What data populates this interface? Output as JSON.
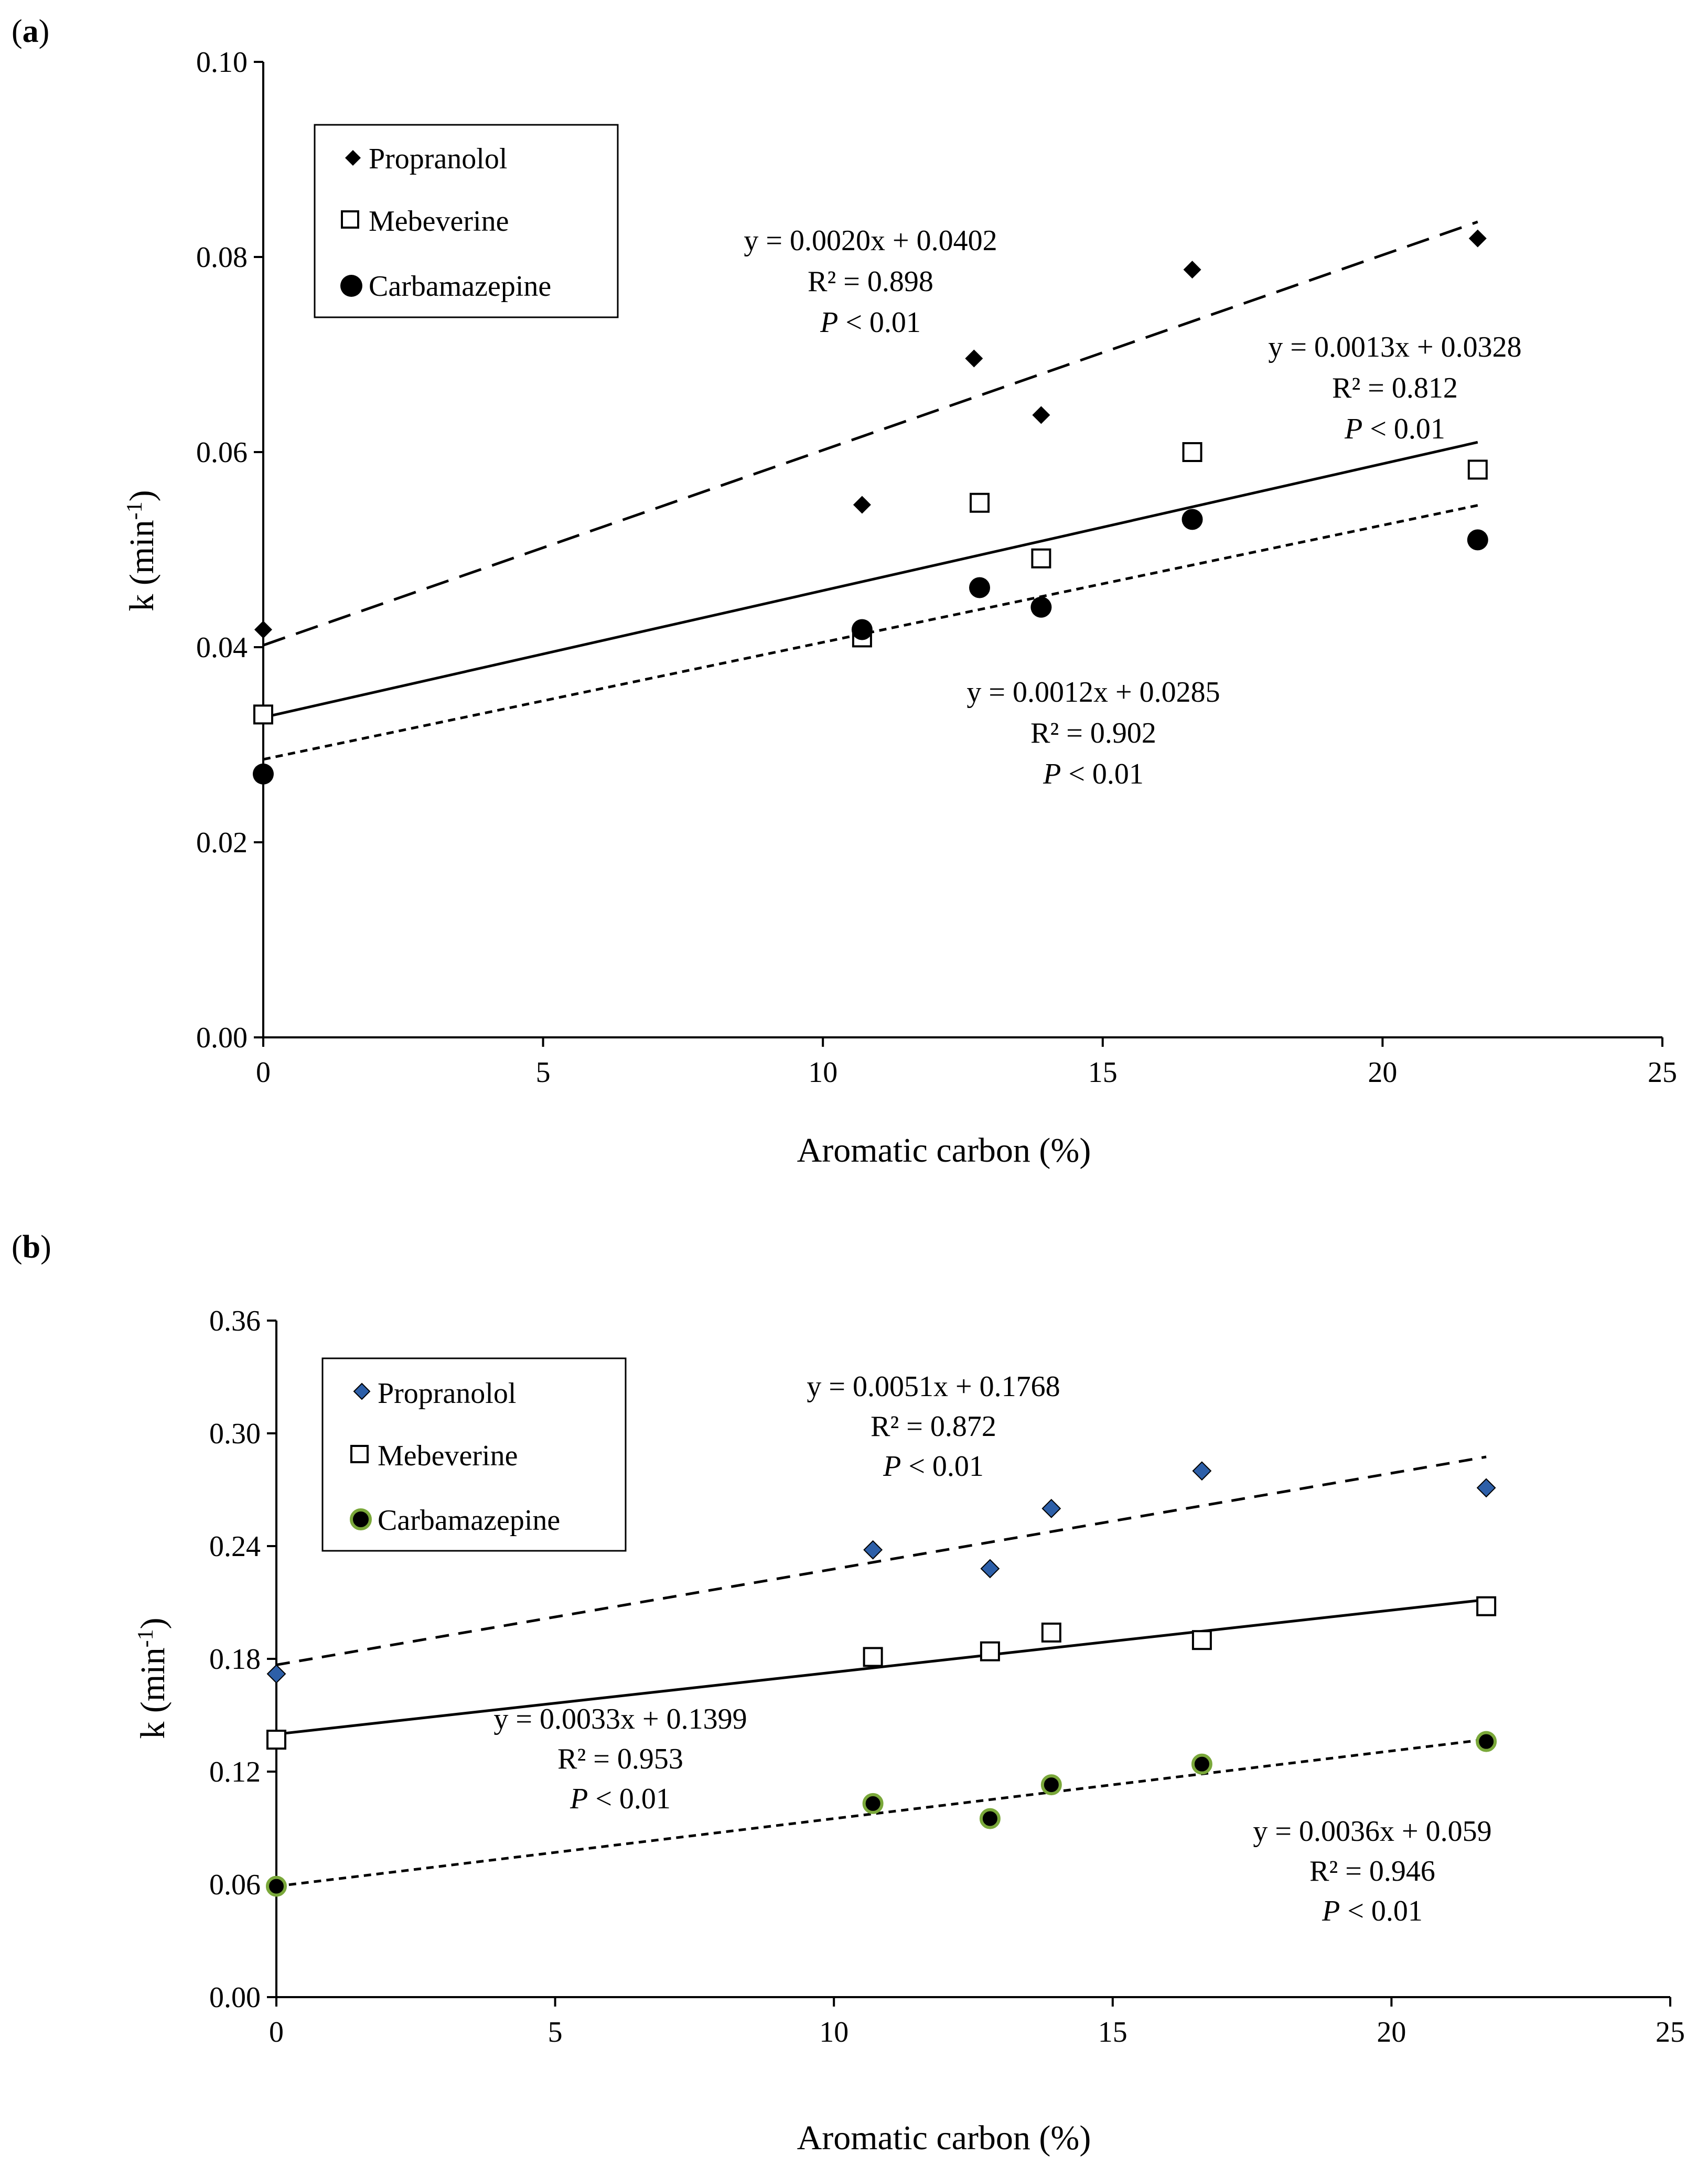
{
  "panels": [
    {
      "label_open": "(",
      "label_letter": "a",
      "label_close": ")",
      "legend": [
        "Propranolol",
        "Mebeverine",
        "Carbamazepine"
      ]
    },
    {
      "label_open": "(",
      "label_letter": "b",
      "label_close": ")",
      "legend": [
        "Propranolol",
        "Mebeverine",
        "Carbamazepine"
      ]
    }
  ],
  "chart_data": [
    {
      "type": "scatter",
      "panel": "a",
      "xlabel": "Aromatic carbon (%)",
      "ylabel_base": "k (min",
      "ylabel_sup": "-1",
      "ylabel_close": ")",
      "xlim": [
        0,
        25
      ],
      "ylim": [
        0.0,
        0.1
      ],
      "xticks": [
        "0",
        "5",
        "10",
        "15",
        "20",
        "25"
      ],
      "yticks": [
        "0.00",
        "0.02",
        "0.04",
        "0.06",
        "0.08",
        "0.10"
      ],
      "legend_position": "top-left",
      "series": [
        {
          "name": "Propranolol",
          "marker": "diamond",
          "x": [
            0,
            10.7,
            12.7,
            13.9,
            16.6,
            21.7
          ],
          "y": [
            0.0418,
            0.0546,
            0.0696,
            0.0638,
            0.0787,
            0.0819
          ],
          "trend": {
            "slope": 0.002,
            "intercept": 0.0402,
            "x_range": [
              0,
              21.7
            ],
            "style": "long-dash"
          },
          "equation": "y = 0.0020x + 0.0402",
          "r2": "R² = 0.898",
          "p_italic": "P",
          "p_rest": " < 0.01"
        },
        {
          "name": "Mebeverine",
          "marker": "open-square",
          "x": [
            0,
            10.7,
            12.8,
            13.9,
            16.6,
            21.7
          ],
          "y": [
            0.0331,
            0.041,
            0.0548,
            0.0491,
            0.06,
            0.0582
          ],
          "trend": {
            "slope": 0.0013,
            "intercept": 0.0328,
            "x_range": [
              0,
              21.7
            ],
            "style": "solid"
          },
          "equation": "y = 0.0013x + 0.0328",
          "r2": "R² = 0.812",
          "p_italic": "P",
          "p_rest": " < 0.01"
        },
        {
          "name": "Carbamazepine",
          "marker": "filled-circle",
          "x": [
            0,
            10.7,
            12.8,
            13.9,
            16.6,
            21.7
          ],
          "y": [
            0.027,
            0.0418,
            0.0461,
            0.0441,
            0.0531,
            0.051
          ],
          "trend": {
            "slope": 0.0012,
            "intercept": 0.0285,
            "x_range": [
              0,
              21.7
            ],
            "style": "short-dash"
          },
          "equation": "y = 0.0012x + 0.0285",
          "r2": "R² = 0.902",
          "p_italic": "P",
          "p_rest": " < 0.01"
        }
      ]
    },
    {
      "type": "scatter",
      "panel": "b",
      "xlabel": "Aromatic carbon (%)",
      "ylabel_base": "k (min",
      "ylabel_sup": "-1",
      "ylabel_close": ")",
      "xlim": [
        0,
        25
      ],
      "ylim": [
        0.0,
        0.36
      ],
      "xticks": [
        "0",
        "5",
        "10",
        "15",
        "20",
        "25"
      ],
      "yticks": [
        "0.00",
        "0.06",
        "0.12",
        "0.18",
        "0.24",
        "0.30",
        "0.36"
      ],
      "legend_position": "top-left",
      "series": [
        {
          "name": "Propranolol",
          "marker": "diamond-blue",
          "x": [
            0,
            10.7,
            12.8,
            13.9,
            16.6,
            21.7
          ],
          "y": [
            0.172,
            0.238,
            0.228,
            0.26,
            0.28,
            0.271
          ],
          "trend": {
            "slope": 0.0051,
            "intercept": 0.1768,
            "x_range": [
              0,
              21.7
            ],
            "style": "dash"
          },
          "equation": "y = 0.0051x + 0.1768",
          "r2": "R² = 0.872",
          "p_italic": "P",
          "p_rest": " < 0.01"
        },
        {
          "name": "Mebeverine",
          "marker": "open-square",
          "x": [
            0,
            10.7,
            12.8,
            13.9,
            16.6,
            21.7
          ],
          "y": [
            0.137,
            0.181,
            0.184,
            0.194,
            0.19,
            0.208
          ],
          "trend": {
            "slope": 0.0033,
            "intercept": 0.1399,
            "x_range": [
              0,
              21.7
            ],
            "style": "solid"
          },
          "equation": "y = 0.0033x + 0.1399",
          "r2": "R² = 0.953",
          "p_italic": "P",
          "p_rest": " < 0.01"
        },
        {
          "name": "Carbamazepine",
          "marker": "circle-green",
          "x": [
            0,
            10.7,
            12.8,
            13.9,
            16.6,
            21.7
          ],
          "y": [
            0.059,
            0.103,
            0.095,
            0.113,
            0.124,
            0.136
          ],
          "trend": {
            "slope": 0.0036,
            "intercept": 0.059,
            "x_range": [
              0,
              21.7
            ],
            "style": "short-dash"
          },
          "equation": "y = 0.0036x + 0.059",
          "r2": "R² = 0.946",
          "p_italic": "P",
          "p_rest": " < 0.01"
        }
      ]
    }
  ],
  "colors": {
    "ink": "#000000",
    "diamond_blue": "#2d5fa8",
    "circle_green": "#7aa83a"
  }
}
